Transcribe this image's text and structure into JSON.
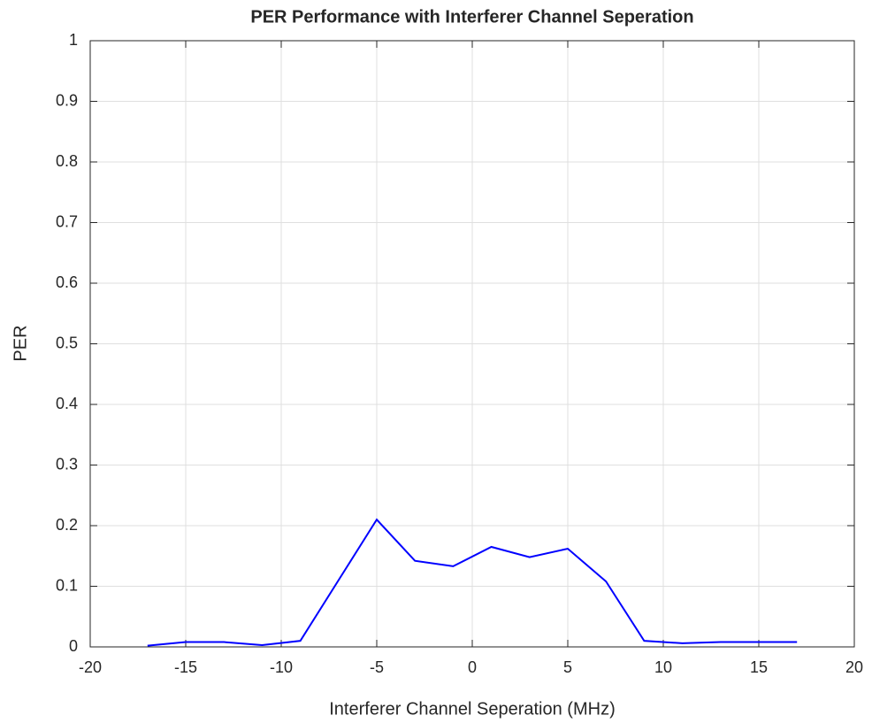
{
  "chart_data": {
    "type": "line",
    "title": "PER Performance with Interferer Channel Seperation",
    "xlabel": "Interferer Channel Seperation (MHz)",
    "ylabel": "PER",
    "x": [
      -17,
      -15,
      -13,
      -11,
      -9,
      -7,
      -5,
      -3,
      -1,
      1,
      3,
      5,
      7,
      9,
      11,
      13,
      15,
      17
    ],
    "series": [
      {
        "color": "#0000ff",
        "values": [
          0.002,
          0.008,
          0.008,
          0.003,
          0.01,
          0.11,
          0.21,
          0.142,
          0.133,
          0.165,
          0.148,
          0.162,
          0.108,
          0.01,
          0.006,
          0.008,
          0.008,
          0.008
        ]
      }
    ],
    "xlim": [
      -20,
      20
    ],
    "xticks": [
      -20,
      -15,
      -10,
      -5,
      0,
      5,
      10,
      15,
      20
    ],
    "ylim": [
      0,
      1
    ],
    "yticks": [
      0,
      0.1,
      0.2,
      0.3,
      0.4,
      0.5,
      0.6,
      0.7,
      0.8,
      0.9,
      1
    ],
    "grid": true
  }
}
